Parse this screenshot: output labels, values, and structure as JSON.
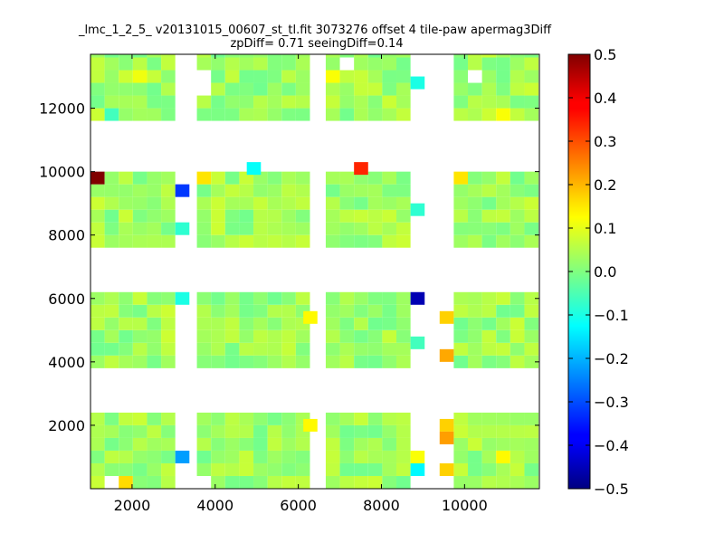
{
  "chart_data": {
    "type": "heatmap",
    "title_lines": [
      "_lmc_1_2_5_ v20131015_00607_st_tl.fit 3073276 offset 4 tile-paw apermag3Diff",
      "zpDiff= 0.71 seeingDiff=0.14"
    ],
    "xlabel": "",
    "ylabel": "",
    "xlim": [
      1000,
      11800
    ],
    "ylim": [
      0,
      13700
    ],
    "x_ticks": [
      2000,
      4000,
      6000,
      8000,
      10000
    ],
    "x_tick_labels": [
      "2000",
      "4000",
      "6000",
      "8000",
      "10000"
    ],
    "y_ticks": [
      2000,
      4000,
      6000,
      8000,
      10000,
      12000
    ],
    "y_tick_labels": [
      "2000",
      "4000",
      "6000",
      "8000",
      "10000",
      "12000"
    ],
    "colorbar": {
      "colormap": "jet",
      "vmin": -0.5,
      "vmax": 0.5,
      "ticks": [
        -0.5,
        -0.4,
        -0.3,
        -0.2,
        -0.1,
        0.0,
        0.1,
        0.2,
        0.3,
        0.4,
        0.5
      ],
      "tick_labels": [
        "−0.5",
        "−0.4",
        "−0.3",
        "−0.2",
        "−0.1",
        "0.0",
        "0.1",
        "0.2",
        "0.3",
        "0.4",
        "0.5"
      ]
    },
    "cell_size": [
      340,
      400
    ],
    "cell_columns_x": [
      1000,
      1340,
      1680,
      2020,
      2360,
      2700,
      3040,
      4420,
      4760,
      5100,
      5440,
      5780,
      6120,
      6660,
      7000,
      7340,
      7680,
      8020,
      8360,
      8700,
      10080,
      10420,
      10760,
      11100,
      11440,
      11780
    ],
    "block_columns": [
      [
        1000,
        3040
      ],
      [
        3560,
        6120
      ],
      [
        6660,
        8700
      ],
      [
        9740,
        11780
      ]
    ],
    "block_row_bands": [
      [
        0,
        2200
      ],
      [
        3800,
        6000
      ],
      [
        7600,
        9800
      ],
      [
        11600,
        13700
      ]
    ],
    "baseline_value": 0.03,
    "empty_cells": [
      {
        "x": 1000,
        "y": 1800
      },
      {
        "x": 1340,
        "y": 0
      },
      {
        "x": 3560,
        "y": 1800
      },
      {
        "x": 3560,
        "y": 1400
      },
      {
        "x": 3560,
        "y": 0
      },
      {
        "x": 3040,
        "y": 0
      },
      {
        "x": 7000,
        "y": 1800
      },
      {
        "x": 8360,
        "y": 200
      },
      {
        "x": 9400,
        "y": 4400
      },
      {
        "x": 3560,
        "y": 5600
      },
      {
        "x": 3040,
        "y": 4200
      },
      {
        "x": 4420,
        "y": 4000
      },
      {
        "x": 7340,
        "y": 5600
      },
      {
        "x": 7340,
        "y": 5200
      },
      {
        "x": 1680,
        "y": 9400
      },
      {
        "x": 1680,
        "y": 9000
      },
      {
        "x": 3560,
        "y": 9400
      },
      {
        "x": 3560,
        "y": 9000
      },
      {
        "x": 6120,
        "y": 9000
      },
      {
        "x": 6120,
        "y": 8600
      },
      {
        "x": 6120,
        "y": 7800
      },
      {
        "x": 8360,
        "y": 8200
      },
      {
        "x": 8700,
        "y": 7800
      },
      {
        "x": 9740,
        "y": 8600
      },
      {
        "x": 9740,
        "y": 8200
      },
      {
        "x": 3560,
        "y": 12400
      },
      {
        "x": 3560,
        "y": 12800
      },
      {
        "x": 4420,
        "y": 13200
      },
      {
        "x": 7000,
        "y": 13200
      },
      {
        "x": 8700,
        "y": 13200
      },
      {
        "x": 10080,
        "y": 12800
      },
      {
        "x": 3040,
        "y": 12000
      },
      {
        "x": 3040,
        "y": 12400
      },
      {
        "x": 3040,
        "y": 12800
      },
      {
        "x": 3040,
        "y": 11600
      },
      {
        "x": 8700,
        "y": 11600
      }
    ],
    "highlight_cells": [
      {
        "x": 1000,
        "y": 9600,
        "value": 0.5
      },
      {
        "x": 3040,
        "y": 9200,
        "value": -0.32
      },
      {
        "x": 4760,
        "y": 9900,
        "value": -0.12
      },
      {
        "x": 7340,
        "y": 9900,
        "value": 0.34
      },
      {
        "x": 3560,
        "y": 9600,
        "value": 0.15
      },
      {
        "x": 9740,
        "y": 9600,
        "value": 0.15
      },
      {
        "x": 6660,
        "y": 13400,
        "value": 0.2
      },
      {
        "x": 8700,
        "y": 12600,
        "value": -0.1
      },
      {
        "x": 8700,
        "y": 5800,
        "value": -0.45
      },
      {
        "x": 3040,
        "y": 5800,
        "value": -0.1
      },
      {
        "x": 9400,
        "y": 5200,
        "value": 0.17
      },
      {
        "x": 9400,
        "y": 4000,
        "value": 0.21
      },
      {
        "x": 1340,
        "y": 4000,
        "value": 0.12
      },
      {
        "x": 3560,
        "y": 4000,
        "value": 0.12
      },
      {
        "x": 9400,
        "y": 1800,
        "value": 0.17
      },
      {
        "x": 9400,
        "y": 1400,
        "value": 0.22
      },
      {
        "x": 9400,
        "y": 400,
        "value": 0.17
      },
      {
        "x": 3040,
        "y": 800,
        "value": -0.22
      },
      {
        "x": 8700,
        "y": 400,
        "value": -0.13
      },
      {
        "x": 8700,
        "y": 800,
        "value": 0.12
      },
      {
        "x": 1680,
        "y": 0,
        "value": 0.16
      },
      {
        "x": 6120,
        "y": 1800,
        "value": 0.13
      },
      {
        "x": 7340,
        "y": 1800,
        "value": 0.14
      },
      {
        "x": 6120,
        "y": 5200,
        "value": 0.13
      },
      {
        "x": 10760,
        "y": 800,
        "value": 0.13
      },
      {
        "x": 6660,
        "y": 12800,
        "value": 0.12
      },
      {
        "x": 2020,
        "y": 12800,
        "value": 0.11
      },
      {
        "x": 1000,
        "y": 8600,
        "value": 0.1
      },
      {
        "x": 9740,
        "y": 9000,
        "value": 0.13
      },
      {
        "x": 4420,
        "y": 12400,
        "value": 0.11
      },
      {
        "x": 10760,
        "y": 11600,
        "value": 0.12
      },
      {
        "x": 10420,
        "y": 13400,
        "value": 0.1
      },
      {
        "x": 1340,
        "y": 11600,
        "value": -0.06
      },
      {
        "x": 8700,
        "y": 8600,
        "value": -0.08
      },
      {
        "x": 8700,
        "y": 4400,
        "value": -0.06
      },
      {
        "x": 6660,
        "y": 4000,
        "value": -0.07
      },
      {
        "x": 3040,
        "y": 8000,
        "value": -0.08
      },
      {
        "x": 2020,
        "y": 4800,
        "value": 0.09
      },
      {
        "x": 4420,
        "y": 8600,
        "value": 0.11
      },
      {
        "x": 1000,
        "y": 5200,
        "value": 0.08
      }
    ]
  }
}
